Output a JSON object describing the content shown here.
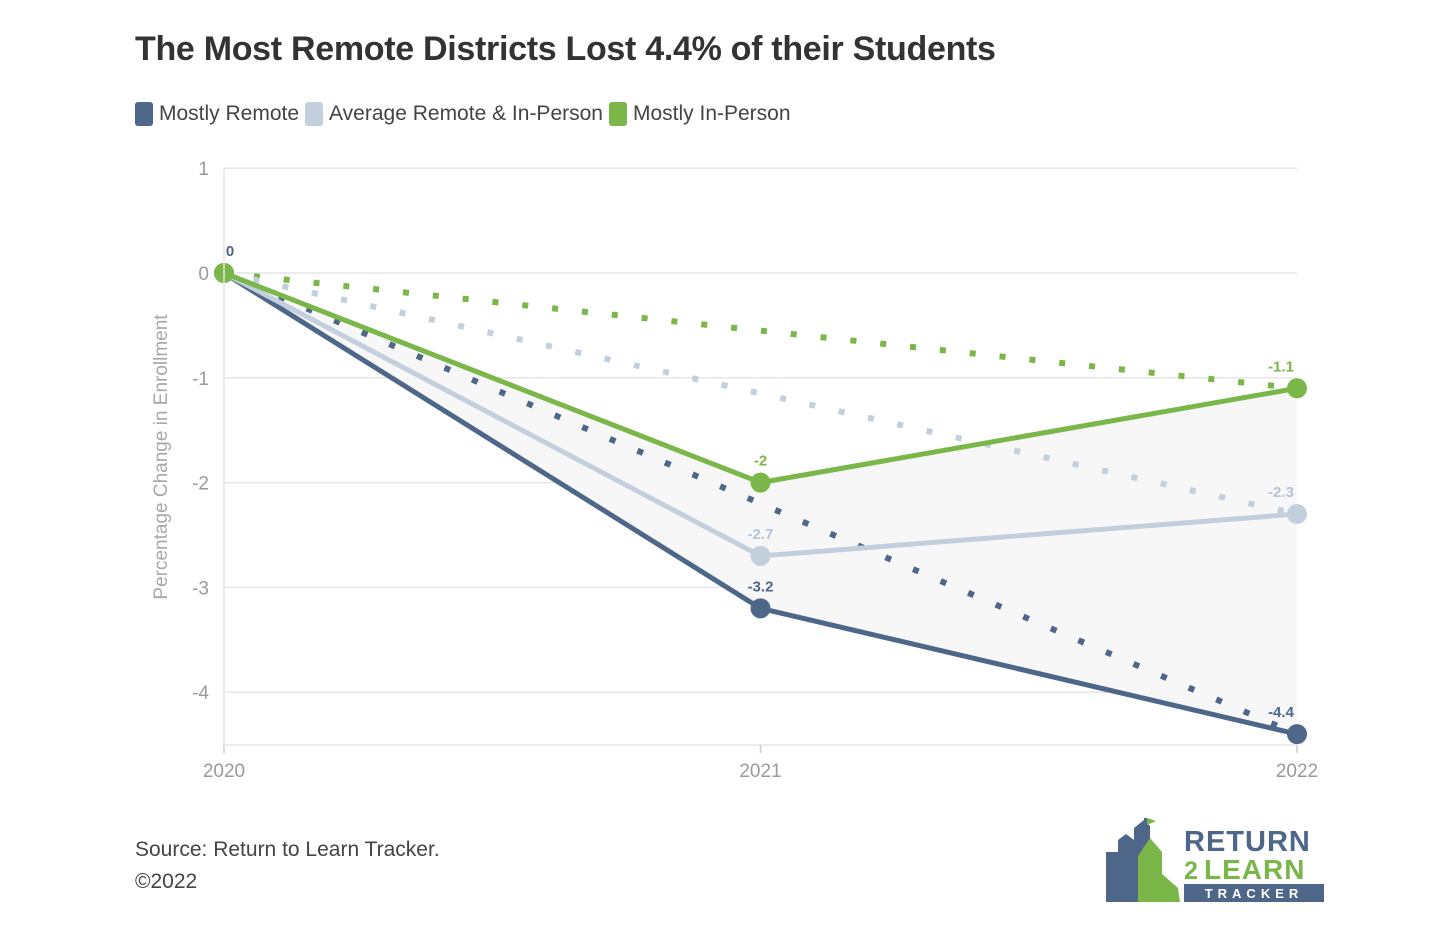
{
  "colors": {
    "mostly_remote": "#4e6688",
    "average": "#c3cfdc",
    "mostly_in_person": "#7ab648",
    "grid": "#e6e6e6",
    "band": "#f7f7f7"
  },
  "footer": {
    "source": "Source: Return to Learn Tracker.",
    "copyright": "©2022"
  },
  "logo": {
    "line1": "RETURN",
    "num": "2",
    "line2": "LEARN",
    "line3": "TRACKER"
  },
  "chart_data": {
    "type": "line",
    "title": "The Most Remote Districts Lost 4.4% of their Students",
    "ylabel": "Percentage Change in Enrollment",
    "xlabel": "",
    "x": [
      "2020",
      "2021",
      "2022"
    ],
    "ylim": [
      -4.5,
      1
    ],
    "yticks": [
      1,
      0,
      -1,
      -2,
      -3,
      -4
    ],
    "grid": true,
    "legend_position": "top-left",
    "series": [
      {
        "name": "Mostly Remote",
        "key": "mostly_remote",
        "values": [
          0,
          -3.2,
          -4.4
        ],
        "labels": [
          "0",
          "-3.2",
          "-4.4"
        ]
      },
      {
        "name": "Average Remote & In-Person",
        "key": "average",
        "values": [
          0,
          -2.7,
          -2.3
        ],
        "labels": [
          "",
          "-2.7",
          "-2.3"
        ]
      },
      {
        "name": "Mostly In-Person",
        "key": "mostly_in_person",
        "values": [
          0,
          -2,
          -1.1
        ],
        "labels": [
          "",
          "-2",
          "-1.1"
        ]
      }
    ],
    "trend_lines": [
      {
        "key": "mostly_in_person",
        "from": [
          0,
          0
        ],
        "to": [
          2,
          -1.1
        ]
      },
      {
        "key": "average",
        "from": [
          0,
          0
        ],
        "to": [
          2,
          -2.3
        ]
      },
      {
        "key": "mostly_remote",
        "from": [
          0,
          0
        ],
        "to": [
          2,
          -4.4
        ]
      }
    ]
  }
}
